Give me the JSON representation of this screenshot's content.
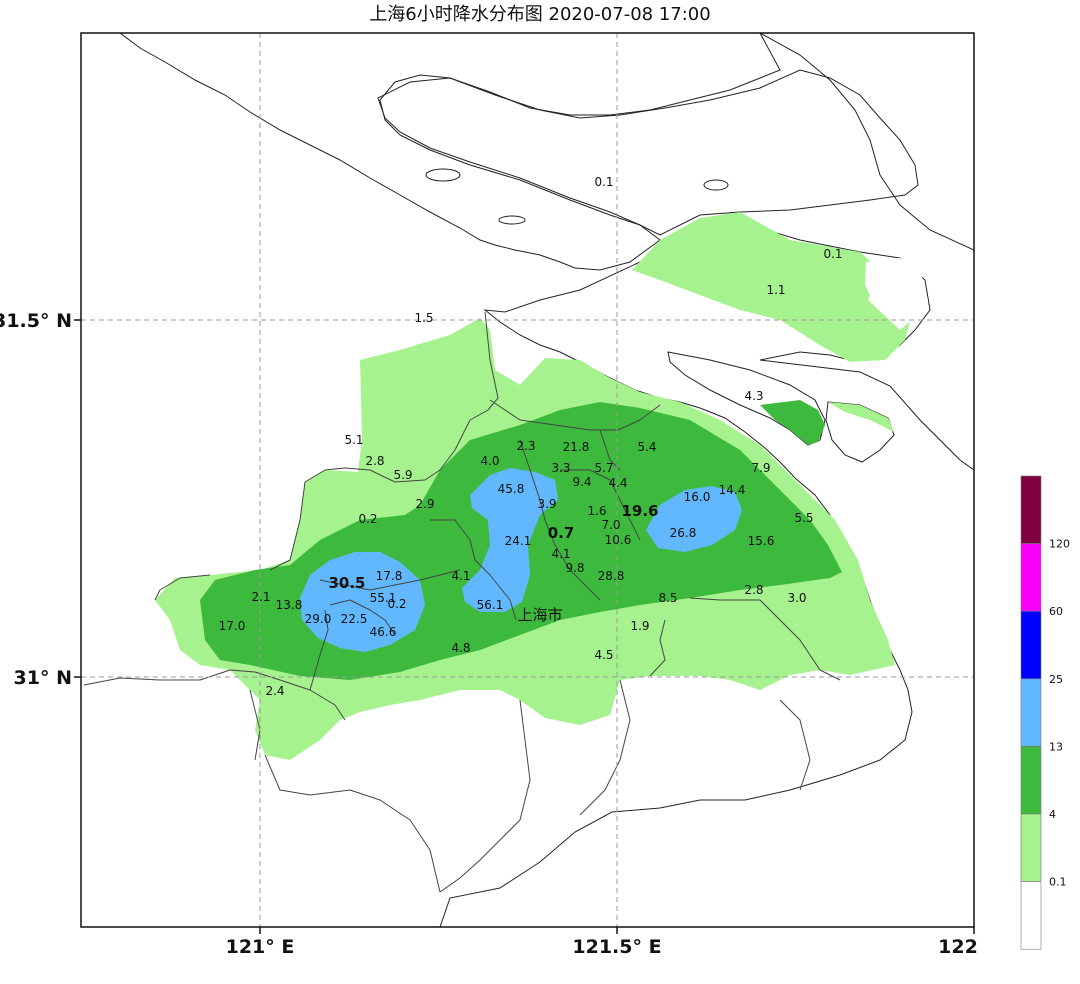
{
  "title": "上海6小时降水分布图 2020-07-08 17:00",
  "axes": {
    "lon_ticks": [
      "121° E",
      "121.5° E",
      "122"
    ],
    "lat_ticks": [
      "31.5° N",
      "31° N"
    ]
  },
  "city_label": "上海市",
  "colors": {
    "water": "#cde8f6",
    "c_0_1": "#ffffff",
    "c_0_1_4": "#a6f28f",
    "c_4_13": "#3dba3d",
    "c_13_25": "#61b8ff",
    "c_25_60": "#0000ff",
    "c_60_120": "#fa00fa",
    "c_120": "#800040"
  },
  "legend": {
    "labels": [
      "120",
      "60",
      "25",
      "13",
      "4",
      "0.1"
    ],
    "colors": [
      "#800040",
      "#fa00fa",
      "#0000ff",
      "#61b8ff",
      "#3dba3d",
      "#a6f28f",
      "#ffffff"
    ]
  },
  "stations": [
    {
      "v": "0.1"
    },
    {
      "v": "0.1"
    },
    {
      "v": "1.1"
    },
    {
      "v": "1.5"
    },
    {
      "v": "4.3"
    },
    {
      "v": "5.1"
    },
    {
      "v": "2.8"
    },
    {
      "v": "5.9"
    },
    {
      "v": "2.3"
    },
    {
      "v": "21.8"
    },
    {
      "v": "5.4"
    },
    {
      "v": "4.0"
    },
    {
      "v": "3.3"
    },
    {
      "v": "5.7"
    },
    {
      "v": "7.9"
    },
    {
      "v": "45.8"
    },
    {
      "v": "9.4"
    },
    {
      "v": "4.4"
    },
    {
      "v": "16.0"
    },
    {
      "v": "14.4"
    },
    {
      "v": "2.9"
    },
    {
      "v": "3.9"
    },
    {
      "v": "0.2"
    },
    {
      "v": "1.6"
    },
    {
      "v": "19.6"
    },
    {
      "v": "5.5"
    },
    {
      "v": "0.7"
    },
    {
      "v": "7.0"
    },
    {
      "v": "26.8"
    },
    {
      "v": "24.1"
    },
    {
      "v": "10.6"
    },
    {
      "v": "15.6"
    },
    {
      "v": "4.1"
    },
    {
      "v": "17.8"
    },
    {
      "v": "9.8"
    },
    {
      "v": "30.5"
    },
    {
      "v": "4.1"
    },
    {
      "v": "28.8"
    },
    {
      "v": "2.1"
    },
    {
      "v": "55.1"
    },
    {
      "v": "2.8"
    },
    {
      "v": "3.0"
    },
    {
      "v": "13.8"
    },
    {
      "v": "0.2"
    },
    {
      "v": "56.1"
    },
    {
      "v": "8.5"
    },
    {
      "v": "29.0"
    },
    {
      "v": "22.5"
    },
    {
      "v": "17.0"
    },
    {
      "v": "1.9"
    },
    {
      "v": "46.6"
    },
    {
      "v": "4.8"
    },
    {
      "v": "4.5"
    },
    {
      "v": "2.4"
    }
  ]
}
